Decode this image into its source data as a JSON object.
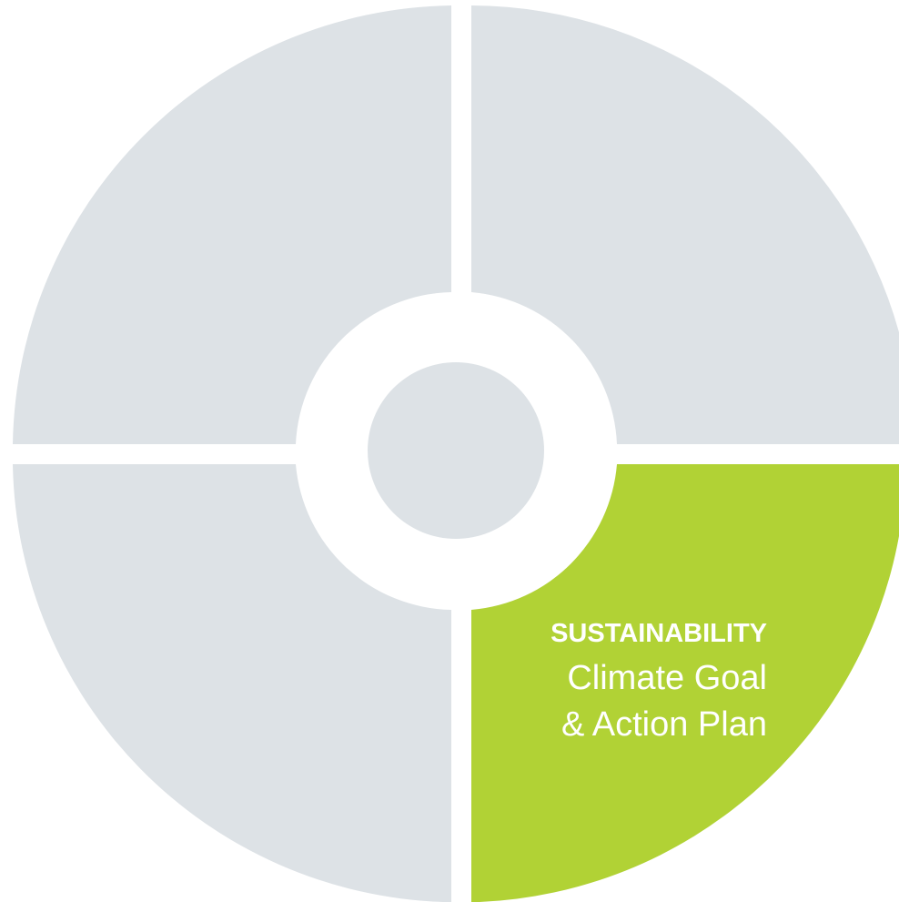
{
  "diagram": {
    "quadrants": [
      {
        "id": "top-left",
        "color": "#dde2e6",
        "highlighted": false
      },
      {
        "id": "top-right",
        "color": "#dde2e6",
        "highlighted": false
      },
      {
        "id": "bottom-left",
        "color": "#dde2e6",
        "highlighted": false
      },
      {
        "id": "bottom-right",
        "color": "#b1d235",
        "highlighted": true,
        "heading": "SUSTAINABILITY",
        "line1": "Climate Goal",
        "line2": "& Action Plan"
      }
    ],
    "center_circle_color": "#dde2e6",
    "heading_color": "#ffffff",
    "subtitle_color": "#ffffff"
  }
}
